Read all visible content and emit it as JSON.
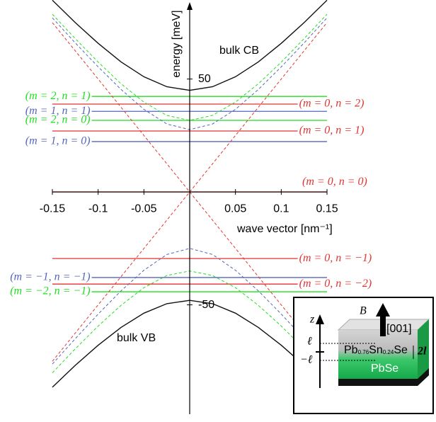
{
  "chart_data": {
    "type": "line",
    "xlabel": "wave vector [nm⁻¹]",
    "ylabel": "energy [meV]",
    "xlim": [
      -0.2,
      0.2
    ],
    "ylim": [
      -100,
      85
    ],
    "xticks": [
      -0.15,
      -0.1,
      -0.05,
      0.05,
      0.1,
      0.15
    ],
    "yticks": [
      50,
      -50
    ],
    "annotations": [
      "bulk CB",
      "bulk VB"
    ],
    "series": [
      {
        "name": "(m = 2, n = 1)",
        "color": "#22dd22",
        "label_side": "left",
        "x": [
          -0.107,
          0.15
        ],
        "values": [
          42.3,
          42.3
        ]
      },
      {
        "name": "(m = 0, n = 2)",
        "color": "#e33333",
        "label_side": "right",
        "x": [
          -0.15,
          0.118
        ],
        "values": [
          38.9,
          38.9
        ]
      },
      {
        "name": "(m = 1, n = 1)",
        "color": "#5566bb",
        "label_side": "left",
        "x": [
          -0.107,
          0.15
        ],
        "values": [
          35.7,
          35.7
        ]
      },
      {
        "name": "(m = 2, n = 0)",
        "color": "#22dd22",
        "label_side": "left",
        "x": [
          -0.107,
          0.15
        ],
        "values": [
          31.7,
          31.7
        ]
      },
      {
        "name": "(m = 0, n = 1)",
        "color": "#e33333",
        "label_side": "right",
        "x": [
          -0.15,
          0.118
        ],
        "values": [
          27.0,
          27.0
        ]
      },
      {
        "name": "(m = 1, n = 0)",
        "color": "#5566bb",
        "label_side": "left",
        "x": [
          -0.107,
          0.15
        ],
        "values": [
          22.3,
          22.3
        ]
      },
      {
        "name": "(m = 0, n = 0)",
        "color": "#e33333",
        "label_side": "above",
        "x": [
          -0.15,
          0.15
        ],
        "values": [
          0,
          0
        ]
      },
      {
        "name": "(m = 0, n = −1)",
        "color": "#e33333",
        "label_side": "right",
        "x": [
          -0.15,
          0.118
        ],
        "values": [
          -29.5,
          -29.5
        ]
      },
      {
        "name": "(m = −1, n = −1)",
        "color": "#5566bb",
        "label_side": "left",
        "x": [
          -0.107,
          0.15
        ],
        "values": [
          -37.9,
          -37.9
        ]
      },
      {
        "name": "(m = 0, n = −2)",
        "color": "#e33333",
        "label_side": "right",
        "x": [
          -0.15,
          0.118
        ],
        "values": [
          -40.8,
          -40.8
        ]
      },
      {
        "name": "(m = −2, n = −1)",
        "color": "#22dd22",
        "label_side": "left",
        "x": [
          -0.107,
          0.15
        ],
        "values": [
          -44.2,
          -44.2
        ]
      },
      {
        "color": "#111111",
        "dash": false,
        "x": [
          -0.15,
          -0.125,
          -0.1,
          -0.075,
          -0.05,
          -0.025,
          0,
          0.025,
          0.05,
          0.075,
          0.1,
          0.125,
          0.15
        ],
        "values": [
          84.9,
          75.0,
          65.8,
          57.6,
          51.0,
          46.6,
          45,
          46.6,
          51.0,
          57.6,
          65.8,
          75.0,
          84.9
        ]
      },
      {
        "color": "#22dd22",
        "dash": true,
        "x": [
          -0.15,
          -0.125,
          -0.1,
          -0.075,
          -0.05,
          -0.025,
          0,
          0.025,
          0.05,
          0.075,
          0.1,
          0.125,
          0.15
        ],
        "values": [
          78.7,
          67.9,
          57.5,
          47.9,
          39.8,
          33.9,
          31.7,
          33.9,
          39.8,
          47.9,
          57.5,
          67.9,
          78.7
        ]
      },
      {
        "color": "#5566bb",
        "dash": true,
        "x": [
          -0.15,
          -0.125,
          -0.1,
          -0.075,
          -0.05,
          -0.025,
          0,
          0.025,
          0.05,
          0.075,
          0.1,
          0.125,
          0.15
        ],
        "values": [
          77.1,
          66.0,
          55.4,
          45.4,
          36.6,
          30.1,
          27.6,
          30.1,
          36.6,
          45.4,
          55.4,
          66.0,
          77.1
        ]
      },
      {
        "color": "#111111",
        "dash": false,
        "x": [
          -0.15,
          -0.125,
          -0.1,
          -0.075,
          -0.05,
          -0.025,
          0,
          0.025,
          0.05,
          0.075,
          0.1,
          0.125,
          0.15
        ],
        "values": [
          -86.5,
          -76.8,
          -67.9,
          -60,
          -53.7,
          -49.5,
          -48,
          -49.5,
          -53.7,
          -60,
          -67.9,
          -76.8,
          -86.5
        ]
      },
      {
        "color": "#22dd22",
        "dash": true,
        "x": [
          -0.15,
          -0.125,
          -0.1,
          -0.075,
          -0.05,
          -0.025,
          0,
          0.025,
          0.05,
          0.075,
          0.1,
          0.125,
          0.15
        ],
        "values": [
          -80.1,
          -69.5,
          -59.4,
          -50.2,
          -42.4,
          -37.0,
          -35,
          -37.0,
          -42.4,
          -50.2,
          -59.4,
          -69.5,
          -80.1
        ]
      },
      {
        "color": "#5566bb",
        "dash": true,
        "x": [
          -0.15,
          -0.125,
          -0.1,
          -0.075,
          -0.05,
          -0.025,
          0,
          0.025,
          0.05,
          0.075,
          0.1,
          0.125,
          0.15
        ],
        "values": [
          -76.2,
          -65,
          -54.1,
          -43.8,
          -34.7,
          -27.7,
          -25,
          -27.7,
          -34.7,
          -43.8,
          -54.1,
          -65,
          -76.2
        ]
      },
      {
        "color": "#e33333",
        "dash": true,
        "x": [
          -0.15,
          0.15
        ],
        "values": [
          -75,
          75
        ]
      },
      {
        "color": "#e33333",
        "dash": true,
        "x": [
          -0.15,
          0.15
        ],
        "values": [
          75,
          -75
        ]
      }
    ],
    "inset": {
      "z_label": "z",
      "field_label": "B⃗",
      "direction": "[001]",
      "top_label": "ℓ",
      "bottom_label": "−ℓ",
      "width_label": "2l",
      "cap_layer": [
        "Pb",
        "0.76",
        "Sn",
        "0.24",
        "Se"
      ],
      "well_layer": "PbSe"
    }
  }
}
